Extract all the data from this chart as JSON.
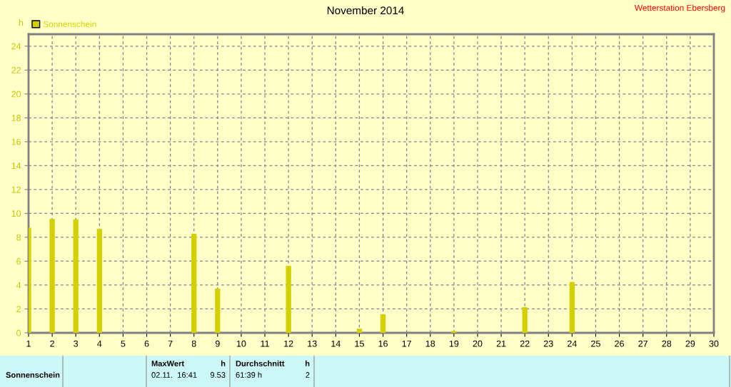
{
  "chart_data": {
    "type": "bar",
    "title": "November 2014",
    "ylabel": "h",
    "x": [
      1,
      2,
      3,
      4,
      5,
      6,
      7,
      8,
      9,
      10,
      11,
      12,
      13,
      14,
      15,
      16,
      17,
      18,
      19,
      20,
      21,
      22,
      23,
      24,
      25,
      26,
      27,
      28,
      29,
      30
    ],
    "series": [
      {
        "name": "Sonnenschein",
        "color": "#d4d000",
        "values": [
          8.8,
          9.53,
          9.5,
          8.7,
          0,
          0,
          0,
          8.3,
          3.7,
          0,
          0,
          5.6,
          0,
          0,
          0.35,
          1.55,
          0,
          0,
          0.15,
          0,
          0,
          2.15,
          0,
          4.25,
          0,
          0,
          0,
          0,
          0,
          0
        ]
      }
    ],
    "xlim": [
      1,
      30
    ],
    "ylim": [
      0,
      25
    ],
    "xticks": [
      1,
      2,
      3,
      4,
      5,
      6,
      7,
      8,
      9,
      10,
      11,
      12,
      13,
      14,
      15,
      16,
      17,
      18,
      19,
      20,
      21,
      22,
      23,
      24,
      25,
      26,
      27,
      28,
      29,
      30
    ],
    "yticks": [
      0,
      2,
      4,
      6,
      8,
      10,
      12,
      14,
      16,
      18,
      20,
      22,
      24
    ],
    "grid": true,
    "legend": "top left",
    "annotations": [
      "Wetterstation Ebersberg",
      "Sonnenschein",
      "MaxWert",
      "h",
      "02.11.  16:41",
      "9.53",
      "Durchschnitt",
      "h",
      "61:39 h",
      "2"
    ]
  }
}
